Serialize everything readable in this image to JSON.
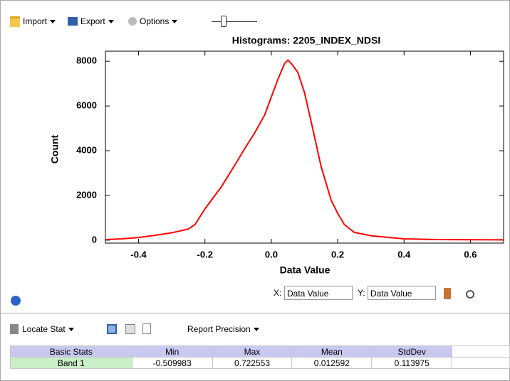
{
  "toolbar": {
    "import": "Import",
    "export": "Export",
    "options": "Options"
  },
  "chart_data": {
    "type": "line",
    "title": "Histograms: 2205_INDEX_NDSI",
    "x_label": "Data Value",
    "y_label": "Count",
    "x": [
      -0.5,
      -0.45,
      -0.4,
      -0.35,
      -0.3,
      -0.25,
      -0.23,
      -0.2,
      -0.15,
      -0.1,
      -0.08,
      -0.05,
      -0.02,
      0.0,
      0.02,
      0.04,
      0.05,
      0.06,
      0.08,
      0.1,
      0.12,
      0.15,
      0.18,
      0.2,
      0.22,
      0.25,
      0.3,
      0.35,
      0.4,
      0.5,
      0.6,
      0.7
    ],
    "series": [
      {
        "name": "Band 1",
        "color": "#ff0000",
        "values": [
          30,
          60,
          120,
          220,
          330,
          500,
          700,
          1400,
          2400,
          3600,
          4100,
          4800,
          5600,
          6400,
          7200,
          7900,
          8050,
          7900,
          7500,
          6600,
          5300,
          3300,
          1800,
          1200,
          700,
          350,
          200,
          130,
          60,
          30,
          20,
          15
        ]
      }
    ],
    "xlim": [
      -0.5,
      0.7
    ],
    "xticks": [
      -0.4,
      -0.2,
      {
        "value": 0,
        "label": "0.0"
      },
      0.2,
      0.4,
      0.6
    ],
    "ylim": [
      -130,
      8450
    ],
    "yticks": [
      0,
      2000,
      4000,
      6000,
      8000
    ]
  },
  "axis_controls": {
    "x_label": "X:",
    "x_value": "Data Value",
    "y_label": "Y:",
    "y_value": "Data Value"
  },
  "stats_toolbar": {
    "locate": "Locate Stat",
    "precision": "Report Precision"
  },
  "table": {
    "header": [
      "Basic Stats",
      "Min",
      "Max",
      "Mean",
      "StdDev"
    ],
    "rows": [
      [
        "Band 1",
        -0.509983,
        0.722553,
        0.012592,
        0.113975
      ]
    ]
  }
}
